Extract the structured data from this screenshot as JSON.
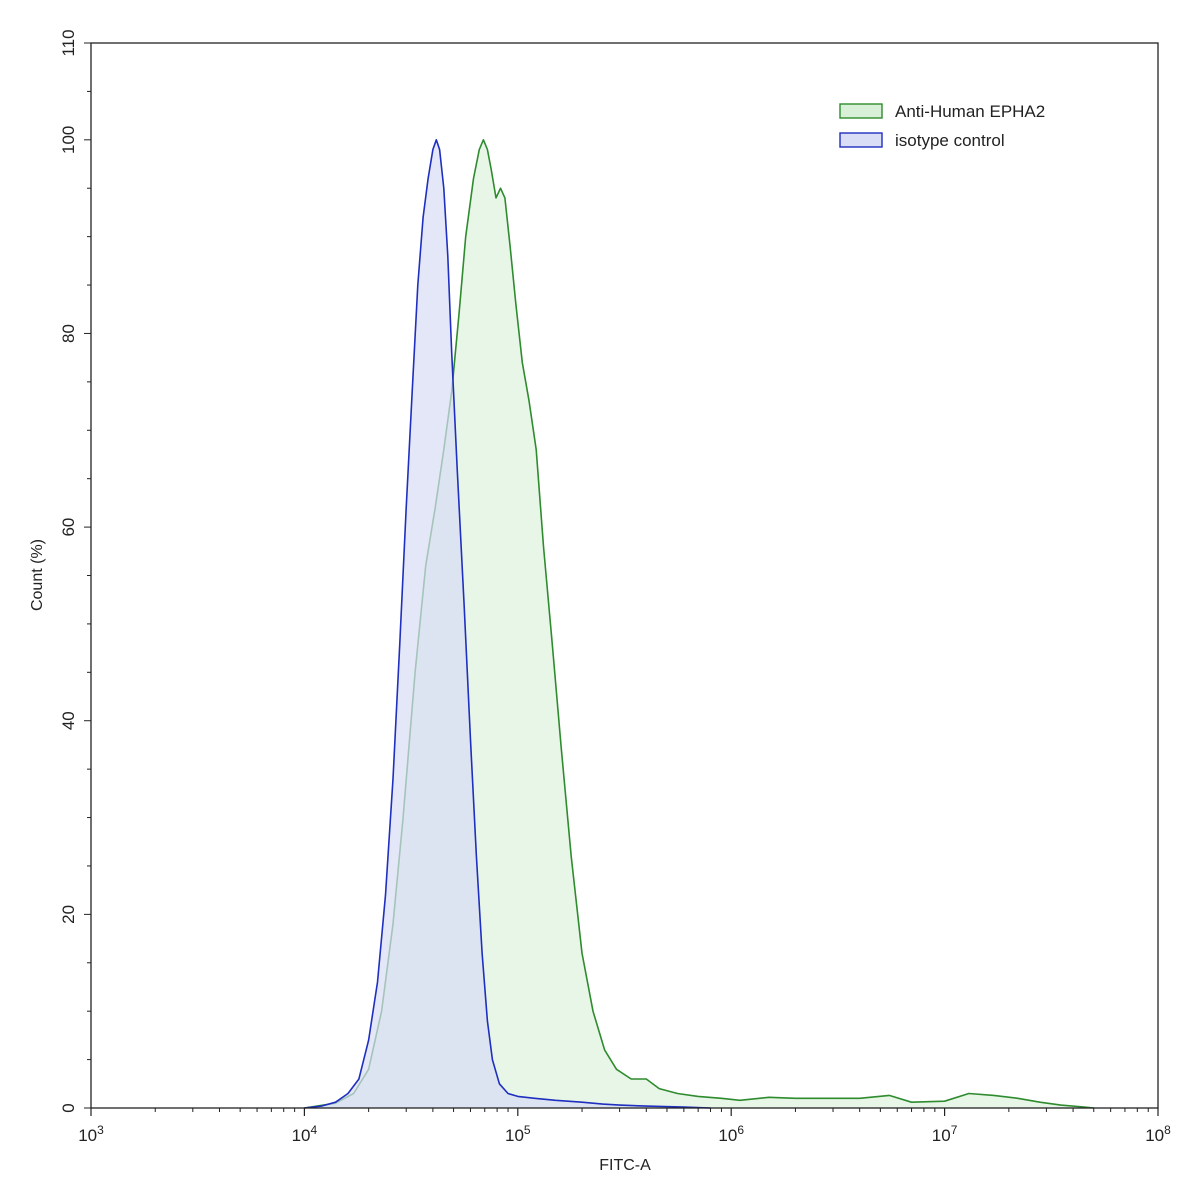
{
  "chart_data": {
    "type": "area",
    "xlabel": "FITC-A",
    "ylabel": "Count  (%)",
    "x_scale": "log10",
    "xlim": [
      1000,
      100000000
    ],
    "ylim": [
      0,
      110
    ],
    "x_ticks": [
      {
        "base": "10",
        "exp": "3",
        "value": 1000
      },
      {
        "base": "10",
        "exp": "4",
        "value": 10000
      },
      {
        "base": "10",
        "exp": "5",
        "value": 100000
      },
      {
        "base": "10",
        "exp": "6",
        "value": 1000000
      },
      {
        "base": "10",
        "exp": "7",
        "value": 10000000
      },
      {
        "base": "10",
        "exp": "8",
        "value": 100000000
      }
    ],
    "y_ticks": [
      {
        "label": "0",
        "value": 0
      },
      {
        "label": "20",
        "value": 20
      },
      {
        "label": "40",
        "value": 40
      },
      {
        "label": "60",
        "value": 60
      },
      {
        "label": "80",
        "value": 80
      },
      {
        "label": "100",
        "value": 100
      },
      {
        "label": "110",
        "value": 110
      }
    ],
    "grid": false,
    "legend_position": "top-right",
    "series": [
      {
        "name": "Anti-Human EPHA2",
        "stroke": "#2e8b2e",
        "fill": "#d8f0d8",
        "points": [
          [
            10000,
            0
          ],
          [
            14000,
            0.5
          ],
          [
            17000,
            1.5
          ],
          [
            20000,
            4
          ],
          [
            23000,
            10
          ],
          [
            26000,
            19
          ],
          [
            29000,
            30
          ],
          [
            33000,
            45
          ],
          [
            37000,
            56
          ],
          [
            41000,
            62
          ],
          [
            45000,
            68
          ],
          [
            49000,
            74
          ],
          [
            53000,
            82
          ],
          [
            57000,
            90
          ],
          [
            62000,
            96
          ],
          [
            66000,
            99
          ],
          [
            69000,
            100
          ],
          [
            72000,
            99
          ],
          [
            75000,
            97
          ],
          [
            79000,
            94
          ],
          [
            83000,
            95
          ],
          [
            87000,
            94
          ],
          [
            92000,
            89
          ],
          [
            98000,
            83
          ],
          [
            105000,
            77
          ],
          [
            113000,
            73
          ],
          [
            122000,
            68
          ],
          [
            132000,
            58
          ],
          [
            145000,
            48
          ],
          [
            160000,
            37
          ],
          [
            178000,
            26
          ],
          [
            200000,
            16
          ],
          [
            225000,
            10
          ],
          [
            255000,
            6
          ],
          [
            290000,
            4
          ],
          [
            340000,
            3
          ],
          [
            400000,
            3
          ],
          [
            460000,
            2
          ],
          [
            560000,
            1.5
          ],
          [
            700000,
            1.2
          ],
          [
            900000,
            1
          ],
          [
            1100000,
            0.8
          ],
          [
            1500000,
            1.1
          ],
          [
            2000000,
            1
          ],
          [
            3000000,
            1
          ],
          [
            4000000,
            1
          ],
          [
            5500000,
            1.3
          ],
          [
            7000000,
            0.6
          ],
          [
            10000000,
            0.7
          ],
          [
            13000000,
            1.5
          ],
          [
            17000000,
            1.3
          ],
          [
            22000000,
            1
          ],
          [
            28000000,
            0.6
          ],
          [
            35000000,
            0.3
          ],
          [
            45000000,
            0.1
          ],
          [
            50000000,
            0
          ]
        ]
      },
      {
        "name": "isotype control",
        "stroke": "#1f2fbf",
        "fill": "#d9ddf5",
        "points": [
          [
            10000,
            0
          ],
          [
            12000,
            0.2
          ],
          [
            14000,
            0.6
          ],
          [
            16000,
            1.5
          ],
          [
            18000,
            3
          ],
          [
            20000,
            7
          ],
          [
            22000,
            13
          ],
          [
            24000,
            22
          ],
          [
            26000,
            34
          ],
          [
            28000,
            48
          ],
          [
            30000,
            62
          ],
          [
            32000,
            74
          ],
          [
            34000,
            85
          ],
          [
            36000,
            92
          ],
          [
            38000,
            96
          ],
          [
            40000,
            99
          ],
          [
            41500,
            100
          ],
          [
            43000,
            99
          ],
          [
            45000,
            95
          ],
          [
            47000,
            88
          ],
          [
            49000,
            78
          ],
          [
            52000,
            66
          ],
          [
            56000,
            52
          ],
          [
            60000,
            38
          ],
          [
            64000,
            26
          ],
          [
            68000,
            16
          ],
          [
            72000,
            9
          ],
          [
            76000,
            5
          ],
          [
            82000,
            2.5
          ],
          [
            90000,
            1.5
          ],
          [
            100000,
            1.2
          ],
          [
            120000,
            1
          ],
          [
            150000,
            0.8
          ],
          [
            200000,
            0.6
          ],
          [
            250000,
            0.4
          ],
          [
            300000,
            0.3
          ],
          [
            400000,
            0.2
          ],
          [
            600000,
            0.1
          ],
          [
            800000,
            0
          ]
        ]
      }
    ]
  }
}
